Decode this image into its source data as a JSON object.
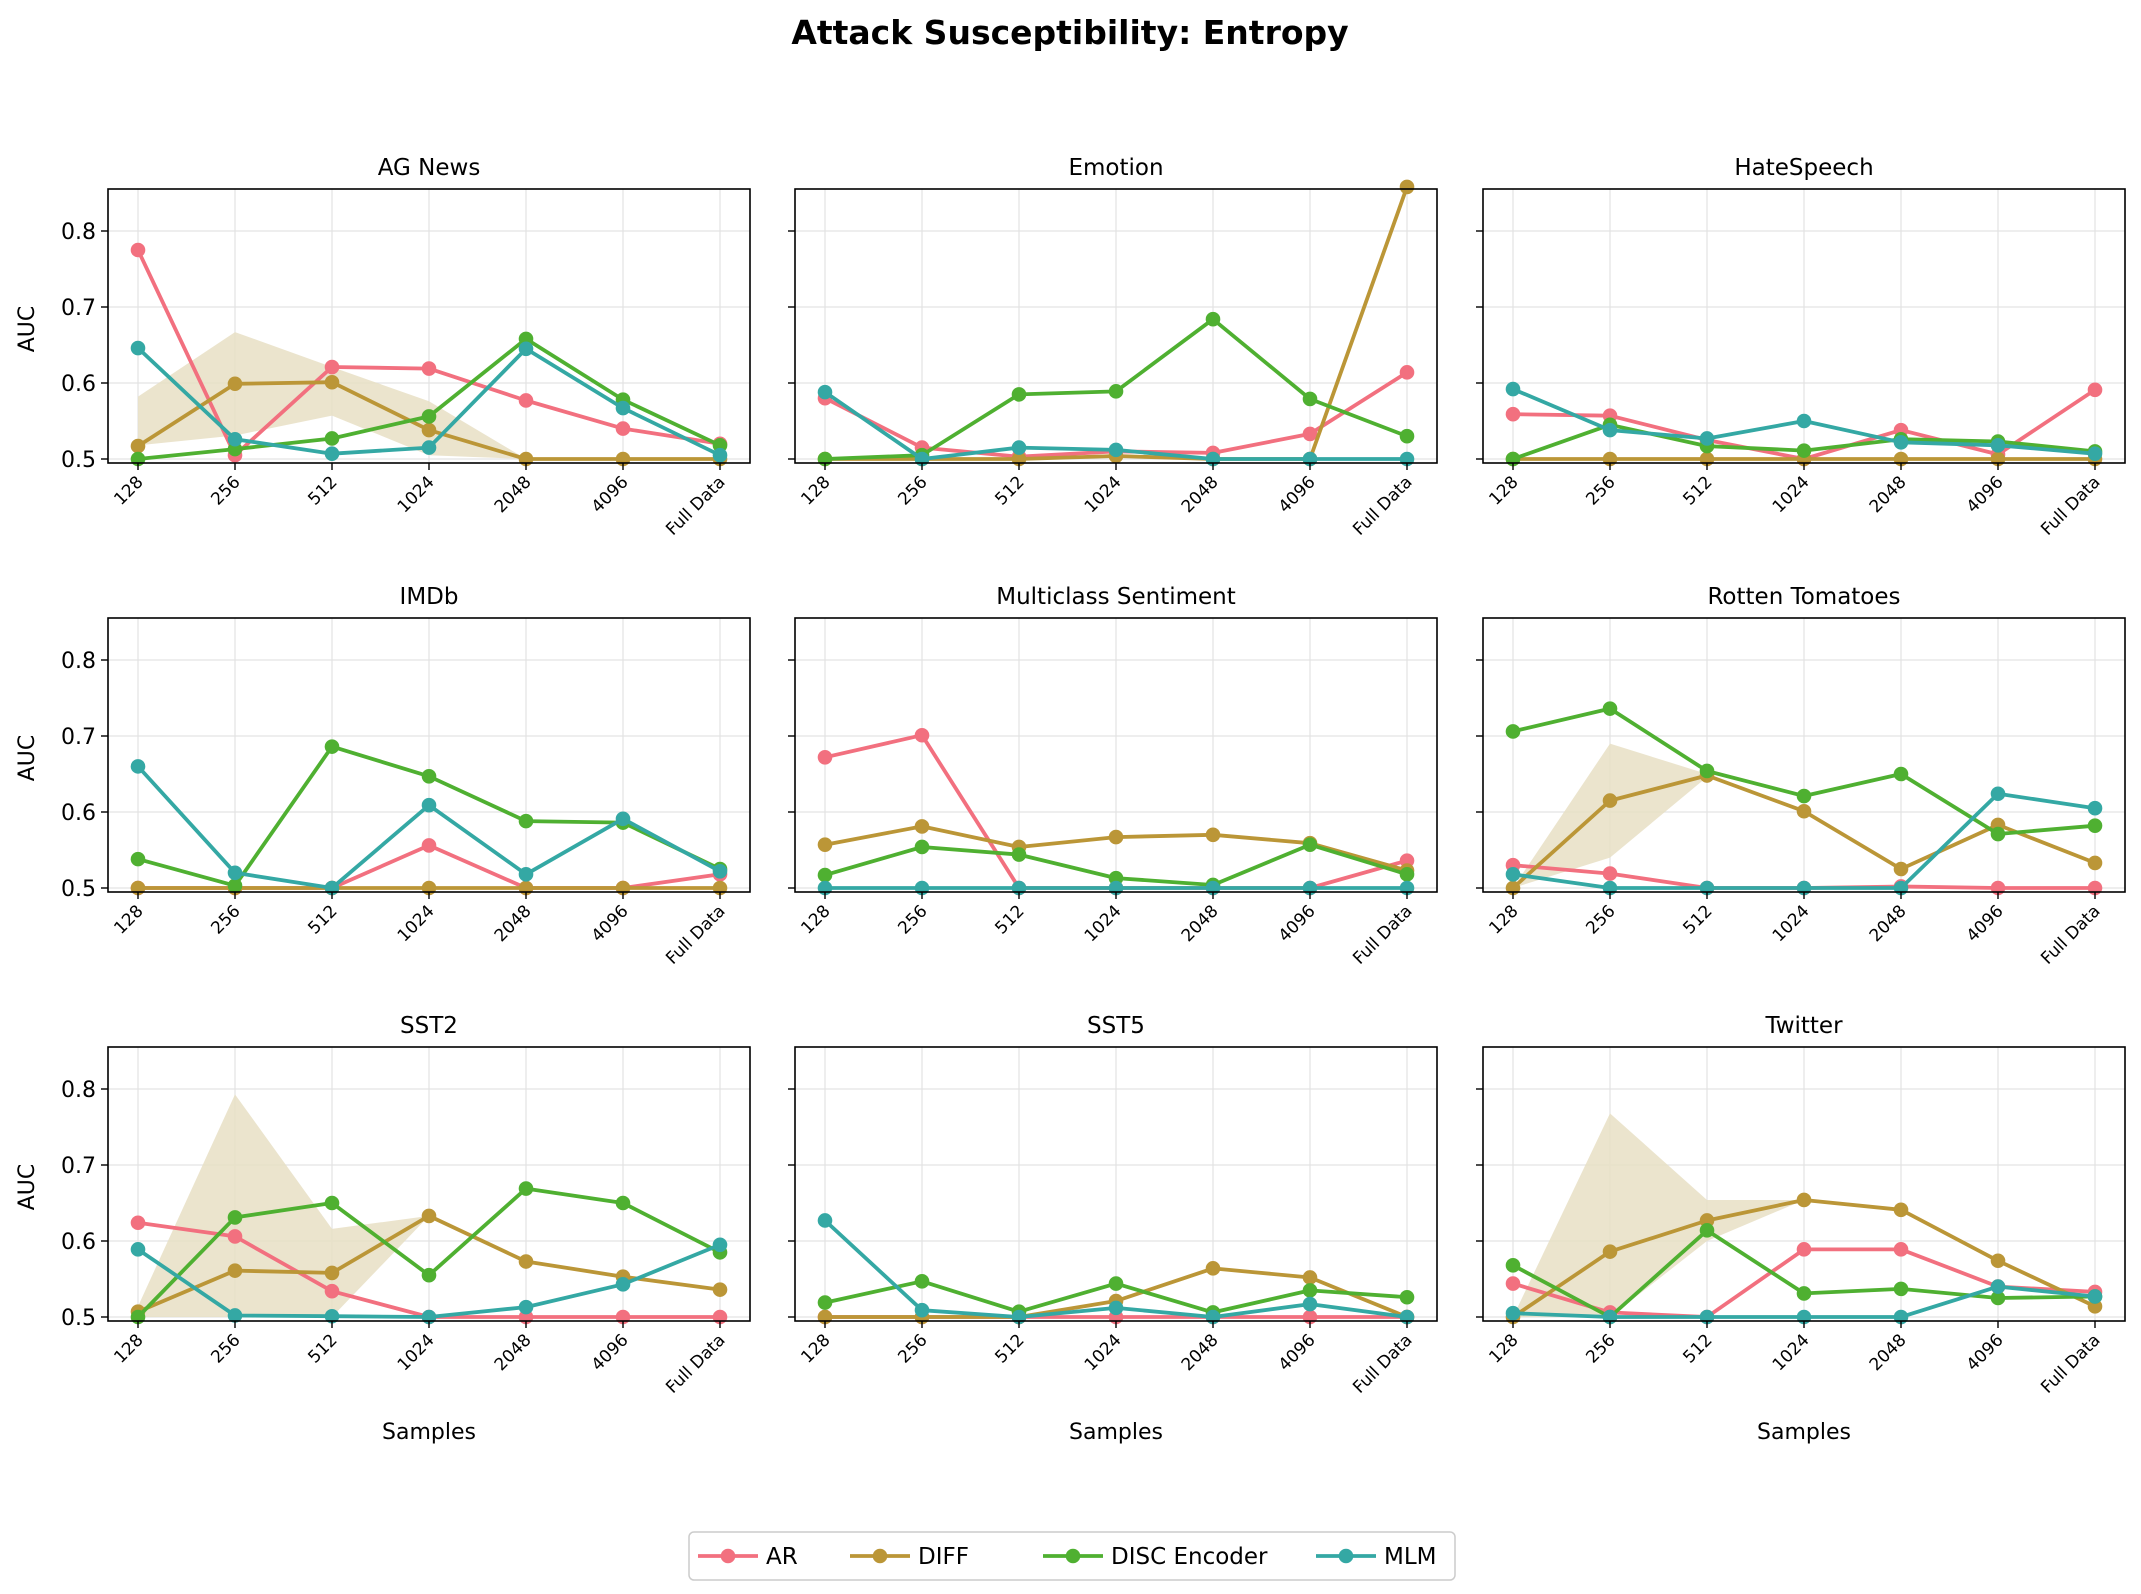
{
  "chart_data": {
    "title": "Attack Susceptibility: Entropy",
    "type": "line",
    "xlabel": "Samples",
    "ylabel": "AUC",
    "ylim": [
      0.5,
      0.865
    ],
    "yticks": [
      "0.5",
      "0.6",
      "0.7",
      "0.8"
    ],
    "categories": [
      "128",
      "256",
      "512",
      "1024",
      "2048",
      "4096",
      "Full Data"
    ],
    "legend_position": "bottom-center",
    "legend": [
      {
        "name": "AR",
        "color": "#f2707f"
      },
      {
        "name": "DIFF",
        "color": "#bb9637"
      },
      {
        "name": "DISC Encoder",
        "color": "#4fb031"
      },
      {
        "name": "MLM",
        "color": "#34a8a4"
      }
    ],
    "shade_color": "#e8dfc4",
    "panels": [
      {
        "title": "AG News",
        "series": {
          "AR": [
            0.775,
            0.505,
            0.621,
            0.619,
            0.577,
            0.54,
            0.52
          ],
          "DIFF": [
            0.517,
            0.599,
            0.601,
            0.538,
            0.5,
            0.5,
            0.5
          ],
          "DISC Encoder": [
            0.5,
            0.513,
            0.527,
            0.556,
            0.658,
            0.578,
            0.518
          ],
          "MLM": [
            0.646,
            0.526,
            0.507,
            0.515,
            0.645,
            0.567,
            0.505
          ]
        },
        "band": {
          "lower": [
            0.518,
            0.531,
            0.557,
            0.505,
            0.5,
            0.5,
            0.5
          ],
          "upper": [
            0.582,
            0.667,
            0.621,
            0.576,
            0.5,
            0.5,
            0.5
          ]
        }
      },
      {
        "title": "Emotion",
        "series": {
          "AR": [
            0.58,
            0.515,
            0.503,
            0.51,
            0.508,
            0.533,
            0.614
          ],
          "DIFF": [
            0.5,
            0.5,
            0.5,
            0.504,
            0.5,
            0.5,
            0.858
          ],
          "DISC Encoder": [
            0.5,
            0.505,
            0.585,
            0.589,
            0.684,
            0.579,
            0.53
          ],
          "MLM": [
            0.588,
            0.5,
            0.515,
            0.512,
            0.5,
            0.5,
            0.5
          ]
        }
      },
      {
        "title": "HateSpeech",
        "series": {
          "AR": [
            0.559,
            0.557,
            0.525,
            0.5,
            0.538,
            0.506,
            0.591
          ],
          "DIFF": [
            0.5,
            0.5,
            0.5,
            0.5,
            0.5,
            0.5,
            0.5
          ],
          "DISC Encoder": [
            0.5,
            0.545,
            0.517,
            0.511,
            0.526,
            0.523,
            0.51
          ],
          "MLM": [
            0.592,
            0.538,
            0.527,
            0.55,
            0.522,
            0.518,
            0.507
          ]
        }
      },
      {
        "title": "IMDb",
        "series": {
          "AR": [
            0.5,
            0.5,
            0.5,
            0.556,
            0.5,
            0.5,
            0.518
          ],
          "DIFF": [
            0.5,
            0.5,
            0.5,
            0.5,
            0.5,
            0.5,
            0.5
          ],
          "DISC Encoder": [
            0.538,
            0.503,
            0.686,
            0.647,
            0.588,
            0.586,
            0.525
          ],
          "MLM": [
            0.66,
            0.52,
            0.5,
            0.609,
            0.518,
            0.591,
            0.522
          ]
        }
      },
      {
        "title": "Multiclass Sentiment",
        "series": {
          "AR": [
            0.672,
            0.701,
            0.5,
            0.5,
            0.5,
            0.5,
            0.536
          ],
          "DIFF": [
            0.557,
            0.581,
            0.554,
            0.567,
            0.57,
            0.559,
            0.523
          ],
          "DISC Encoder": [
            0.517,
            0.554,
            0.544,
            0.513,
            0.504,
            0.557,
            0.518
          ],
          "MLM": [
            0.5,
            0.5,
            0.5,
            0.5,
            0.5,
            0.5,
            0.5
          ]
        }
      },
      {
        "title": "Rotten Tomatoes",
        "series": {
          "AR": [
            0.53,
            0.519,
            0.5,
            0.5,
            0.502,
            0.5,
            0.5
          ],
          "DIFF": [
            0.5,
            0.615,
            0.648,
            0.601,
            0.525,
            0.583,
            0.533
          ],
          "DISC Encoder": [
            0.706,
            0.736,
            0.654,
            0.621,
            0.65,
            0.571,
            0.582
          ],
          "MLM": [
            0.518,
            0.5,
            0.5,
            0.5,
            0.5,
            0.624,
            0.605
          ]
        },
        "band": {
          "lower": [
            0.5,
            0.54,
            0.646,
            0.6,
            0.525,
            0.583,
            0.533
          ],
          "upper": [
            0.5,
            0.69,
            0.65,
            0.602,
            0.525,
            0.583,
            0.533
          ]
        }
      },
      {
        "title": "SST2",
        "series": {
          "AR": [
            0.624,
            0.606,
            0.534,
            0.5,
            0.5,
            0.5,
            0.5
          ],
          "DIFF": [
            0.507,
            0.561,
            0.558,
            0.633,
            0.573,
            0.553,
            0.536
          ],
          "DISC Encoder": [
            0.5,
            0.631,
            0.65,
            0.555,
            0.669,
            0.65,
            0.585
          ],
          "MLM": [
            0.589,
            0.502,
            0.501,
            0.5,
            0.513,
            0.543,
            0.595
          ]
        },
        "band": {
          "lower": [
            0.5,
            0.5,
            0.5,
            0.633,
            0.573,
            0.553,
            0.536
          ],
          "upper": [
            0.514,
            0.793,
            0.616,
            0.633,
            0.573,
            0.553,
            0.536
          ]
        }
      },
      {
        "title": "SST5",
        "series": {
          "AR": [
            0.5,
            0.5,
            0.5,
            0.5,
            0.5,
            0.5,
            0.5
          ],
          "DIFF": [
            0.5,
            0.5,
            0.5,
            0.521,
            0.564,
            0.552,
            0.5
          ],
          "DISC Encoder": [
            0.519,
            0.547,
            0.507,
            0.544,
            0.506,
            0.535,
            0.526
          ],
          "MLM": [
            0.627,
            0.509,
            0.5,
            0.512,
            0.5,
            0.517,
            0.5
          ]
        }
      },
      {
        "title": "Twitter",
        "series": {
          "AR": [
            0.544,
            0.506,
            0.5,
            0.589,
            0.589,
            0.54,
            0.533
          ],
          "DIFF": [
            0.5,
            0.586,
            0.627,
            0.654,
            0.641,
            0.574,
            0.514
          ],
          "DISC Encoder": [
            0.568,
            0.5,
            0.614,
            0.531,
            0.537,
            0.525,
            0.527
          ],
          "MLM": [
            0.505,
            0.5,
            0.5,
            0.5,
            0.5,
            0.54,
            0.527
          ]
        },
        "band": {
          "lower": [
            0.5,
            0.5,
            0.6,
            0.654,
            0.641,
            0.574,
            0.514
          ],
          "upper": [
            0.5,
            0.768,
            0.654,
            0.654,
            0.641,
            0.574,
            0.514
          ]
        }
      }
    ]
  }
}
